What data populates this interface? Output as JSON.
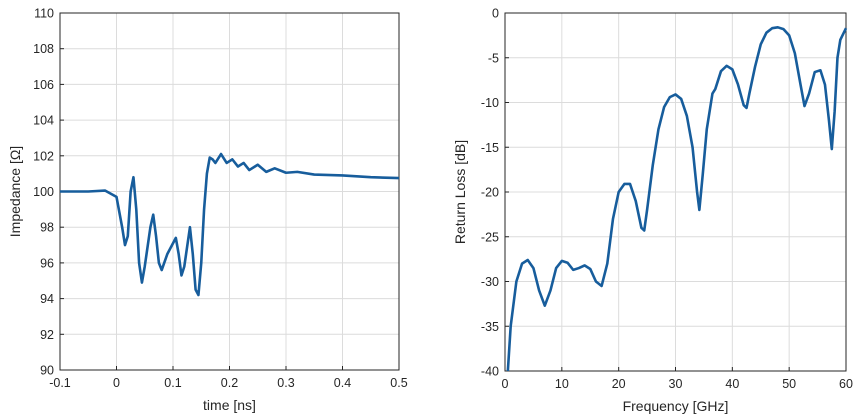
{
  "chart_data": [
    {
      "type": "line",
      "xlabel": "time [ns]",
      "ylabel": "Impedance [Ω]",
      "color": "#175d9c",
      "grid": true,
      "xlim": [
        -0.1,
        0.5
      ],
      "xticks": [
        -0.1,
        0,
        0.1,
        0.2,
        0.3,
        0.4,
        0.5
      ],
      "ylim": [
        90,
        110
      ],
      "yticks": [
        90,
        92,
        94,
        96,
        98,
        100,
        102,
        104,
        106,
        108,
        110
      ],
      "x": [
        -0.1,
        -0.05,
        -0.02,
        0,
        0.01,
        0.015,
        0.02,
        0.025,
        0.03,
        0.035,
        0.04,
        0.045,
        0.05,
        0.06,
        0.065,
        0.07,
        0.075,
        0.08,
        0.09,
        0.1,
        0.105,
        0.11,
        0.115,
        0.12,
        0.13,
        0.135,
        0.14,
        0.145,
        0.15,
        0.155,
        0.16,
        0.165,
        0.17,
        0.175,
        0.185,
        0.195,
        0.205,
        0.215,
        0.225,
        0.235,
        0.25,
        0.265,
        0.28,
        0.3,
        0.32,
        0.35,
        0.4,
        0.45,
        0.5
      ],
      "values": [
        100,
        100,
        100.05,
        99.7,
        98,
        97,
        97.5,
        100,
        100.8,
        99,
        96,
        94.9,
        95.8,
        98,
        98.7,
        97.5,
        96,
        95.6,
        96.5,
        97.1,
        97.4,
        96.5,
        95.3,
        95.8,
        98,
        96.5,
        94.5,
        94.2,
        96,
        99,
        101,
        101.9,
        101.8,
        101.6,
        102.1,
        101.6,
        101.8,
        101.4,
        101.6,
        101.2,
        101.5,
        101.1,
        101.3,
        101.05,
        101.1,
        100.95,
        100.9,
        100.8,
        100.75
      ]
    },
    {
      "type": "line",
      "xlabel": "Frequency [GHz]",
      "ylabel": "Return Loss [dB]",
      "color": "#175d9c",
      "grid": true,
      "xlim": [
        0,
        60
      ],
      "xticks": [
        0,
        10,
        20,
        30,
        40,
        50,
        60
      ],
      "ylim": [
        -40,
        0
      ],
      "yticks": [
        -40,
        -35,
        -30,
        -25,
        -20,
        -15,
        -10,
        -5,
        0
      ],
      "x": [
        0.5,
        1,
        2,
        3,
        4,
        5,
        6,
        7,
        8,
        9,
        10,
        11,
        12,
        13,
        14,
        15,
        16,
        17,
        18,
        19,
        20,
        21,
        22,
        23,
        24,
        24.5,
        25,
        26,
        27,
        28,
        29,
        30,
        31,
        32,
        33,
        33.8,
        34.2,
        34.8,
        35.5,
        36.5,
        37,
        38,
        39,
        40,
        41,
        42,
        42.5,
        43,
        44,
        45,
        46,
        47,
        48,
        49,
        50,
        51,
        52,
        52.7,
        53.5,
        54.5,
        55.5,
        56.3,
        57,
        57.5,
        58,
        58.5,
        59,
        60
      ],
      "values": [
        -40,
        -35,
        -30,
        -28,
        -27.6,
        -28.5,
        -31,
        -32.7,
        -31,
        -28.5,
        -27.7,
        -27.9,
        -28.7,
        -28.5,
        -28.2,
        -28.6,
        -30,
        -30.5,
        -28,
        -23,
        -20,
        -19.1,
        -19.1,
        -21,
        -24,
        -24.3,
        -22,
        -17,
        -13,
        -10.5,
        -9.4,
        -9.1,
        -9.6,
        -11.5,
        -15,
        -20,
        -22,
        -18,
        -13,
        -9,
        -8.5,
        -6.5,
        -5.9,
        -6.3,
        -8,
        -10.3,
        -10.6,
        -9,
        -6,
        -3.5,
        -2.2,
        -1.7,
        -1.6,
        -1.8,
        -2.5,
        -4.5,
        -8,
        -10.4,
        -9,
        -6.6,
        -6.4,
        -8,
        -12,
        -15.2,
        -11,
        -5,
        -3,
        -1.7
      ]
    }
  ]
}
